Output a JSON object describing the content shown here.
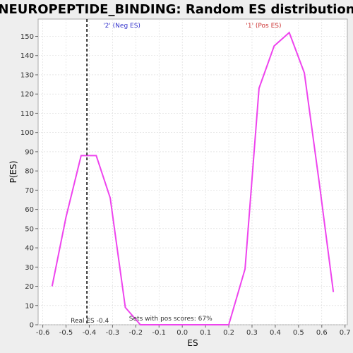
{
  "chart_data": {
    "type": "line",
    "title": "NEUROPEPTIDE_BINDING: Random ES distribution",
    "xlabel": "ES",
    "ylabel": "P(ES)",
    "xlim": [
      -0.62,
      0.71
    ],
    "ylim": [
      0,
      159
    ],
    "x_ticks": [
      -0.6,
      -0.5,
      -0.4,
      -0.3,
      -0.2,
      -0.1,
      0.0,
      0.1,
      0.2,
      0.3,
      0.4,
      0.5,
      0.6,
      0.7
    ],
    "x_tick_labels": [
      "-0.6",
      "-0.5",
      "-0.4",
      "-0.3",
      "-0.2",
      "-0.1",
      "0.0",
      "0.1",
      "0.2",
      "0.3",
      "0.4",
      "0.5",
      "0.6",
      "0.7"
    ],
    "y_ticks": [
      0,
      10,
      20,
      30,
      40,
      50,
      60,
      70,
      80,
      90,
      100,
      110,
      120,
      130,
      140,
      150
    ],
    "y_tick_labels": [
      "0",
      "10",
      "20",
      "30",
      "40",
      "50",
      "60",
      "70",
      "80",
      "90",
      "100",
      "110",
      "120",
      "130",
      "140",
      "150"
    ],
    "grid": true,
    "line_color": "#ee44ee",
    "series": [
      {
        "x": [
          -0.56,
          -0.5,
          -0.435,
          -0.37,
          -0.31,
          -0.245,
          -0.18,
          -0.12,
          -0.055,
          0.01,
          0.075,
          0.14,
          0.2,
          0.27,
          0.33,
          0.395,
          0.46,
          0.525,
          0.59,
          0.65
        ],
        "y": [
          20,
          56,
          88,
          88,
          66,
          9,
          0,
          0,
          0,
          0,
          0,
          0,
          0,
          29,
          123,
          145,
          152,
          131,
          73,
          17
        ]
      }
    ],
    "real_es": {
      "x": -0.41,
      "label": "Real ES -0.4",
      "color": "#333333"
    },
    "annotations": [
      {
        "text": "'2' (Neg ES)",
        "color": "#3333cc"
      },
      {
        "text": "'1' (Pos ES)",
        "color": "#cc3333"
      },
      {
        "text": "Sets with pos scores: 67%",
        "color": "#333333"
      }
    ]
  }
}
